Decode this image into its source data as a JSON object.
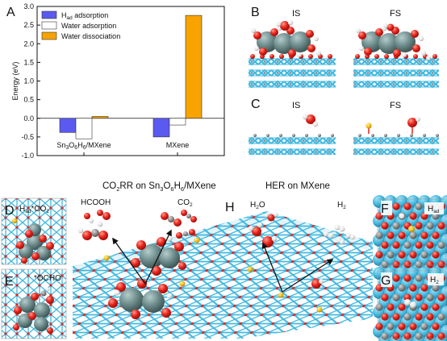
{
  "panels": {
    "a": "A",
    "b": "B",
    "c": "C",
    "d": "D",
    "e": "E",
    "f": "F",
    "g": "G",
    "h": "H"
  },
  "chart_data": {
    "type": "bar",
    "categories": [
      "Sn₃O₆H₆/MXene",
      "MXene"
    ],
    "series": [
      {
        "name": "H_ad adsorption",
        "values": [
          -0.38,
          -0.5
        ],
        "color": "#5a5af0"
      },
      {
        "name": "Water adsorption",
        "values": [
          -0.55,
          -0.18
        ],
        "color": "#ffffff"
      },
      {
        "name": "Water dissociation",
        "values": [
          0.05,
          2.76
        ],
        "color": "#f7a300"
      }
    ],
    "ylabel": "Energy (eV)",
    "ylim": [
      -1.0,
      3.0
    ],
    "yticks": [
      "-1.0",
      "-0.5",
      "0.0",
      "0.5",
      "1.0",
      "1.5",
      "2.0",
      "2.5",
      "3.0"
    ],
    "legend_position": "top-left",
    "legend": [
      "H",
      "ad",
      " adsorption",
      "Water adsorption",
      "Water dissociation"
    ]
  },
  "labels": {
    "b_is": "IS",
    "b_fs": "FS",
    "c_is": "IS",
    "c_fs": "FS",
    "title_co2rr_pre": "CO",
    "title_co2rr_sub1": "2",
    "title_co2rr_mid": "RR on Sn",
    "title_co2rr_s3": "3",
    "title_co2rr_o": "O",
    "title_co2rr_s6": "6",
    "title_co2rr_h": "H",
    "title_co2rr_s6b": "6",
    "title_co2rr_post": "/MXene",
    "title_her": "HER on MXene",
    "d_hpre": "H",
    "d_hsub": "ad",
    "d_post": "*CO",
    "d_sub2": "2",
    "e_label": "*OCHO",
    "hcooh": "HCOOH",
    "co2": "CO",
    "co2_sub": "2",
    "h2o": "H",
    "h2o_sub": "2",
    "h2o_post": "O",
    "h2": "H",
    "h2_sub": "2",
    "f_h": "H",
    "f_sub": "ad",
    "g_h": "H",
    "g_sub": "2"
  },
  "colors": {
    "ti": "#3fb8e0",
    "c": "#888888",
    "o": "#e8231a",
    "h": "#f2f2f2",
    "sn": "#6e8c8c",
    "f_atom": "#f3c01c"
  }
}
